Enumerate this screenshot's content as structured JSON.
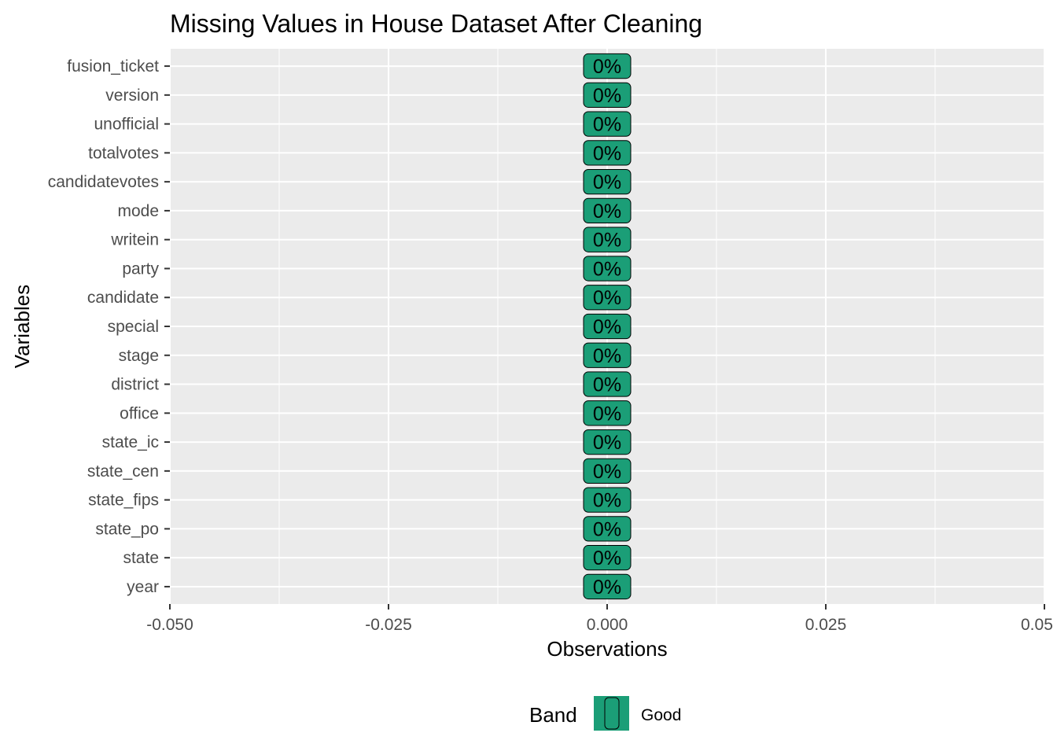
{
  "chart_data": {
    "type": "bar",
    "title": "Missing Values in House Dataset After Cleaning",
    "xlabel": "Observations",
    "ylabel": "Variables",
    "categories": [
      "fusion_ticket",
      "version",
      "unofficial",
      "totalvotes",
      "candidatevotes",
      "mode",
      "writein",
      "party",
      "candidate",
      "special",
      "stage",
      "district",
      "office",
      "state_ic",
      "state_cen",
      "state_fips",
      "state_po",
      "state",
      "year"
    ],
    "values": [
      0,
      0,
      0,
      0,
      0,
      0,
      0,
      0,
      0,
      0,
      0,
      0,
      0,
      0,
      0,
      0,
      0,
      0,
      0
    ],
    "labels": [
      "0%",
      "0%",
      "0%",
      "0%",
      "0%",
      "0%",
      "0%",
      "0%",
      "0%",
      "0%",
      "0%",
      "0%",
      "0%",
      "0%",
      "0%",
      "0%",
      "0%",
      "0%",
      "0%"
    ],
    "xlim": [
      -0.05,
      0.05
    ],
    "xticks": [
      -0.05,
      -0.025,
      0,
      0.025,
      0.05
    ],
    "xtick_labels": [
      "-0.050",
      "-0.025",
      "0.000",
      "0.025",
      "0.05"
    ],
    "grid": true,
    "legend": {
      "title": "Band",
      "position": "bottom",
      "entries": [
        {
          "name": "Good",
          "color": "#1b9e77"
        }
      ]
    },
    "colors": {
      "bar": "#1b9e77",
      "panel": "#ebebeb",
      "grid": "#ffffff"
    }
  }
}
